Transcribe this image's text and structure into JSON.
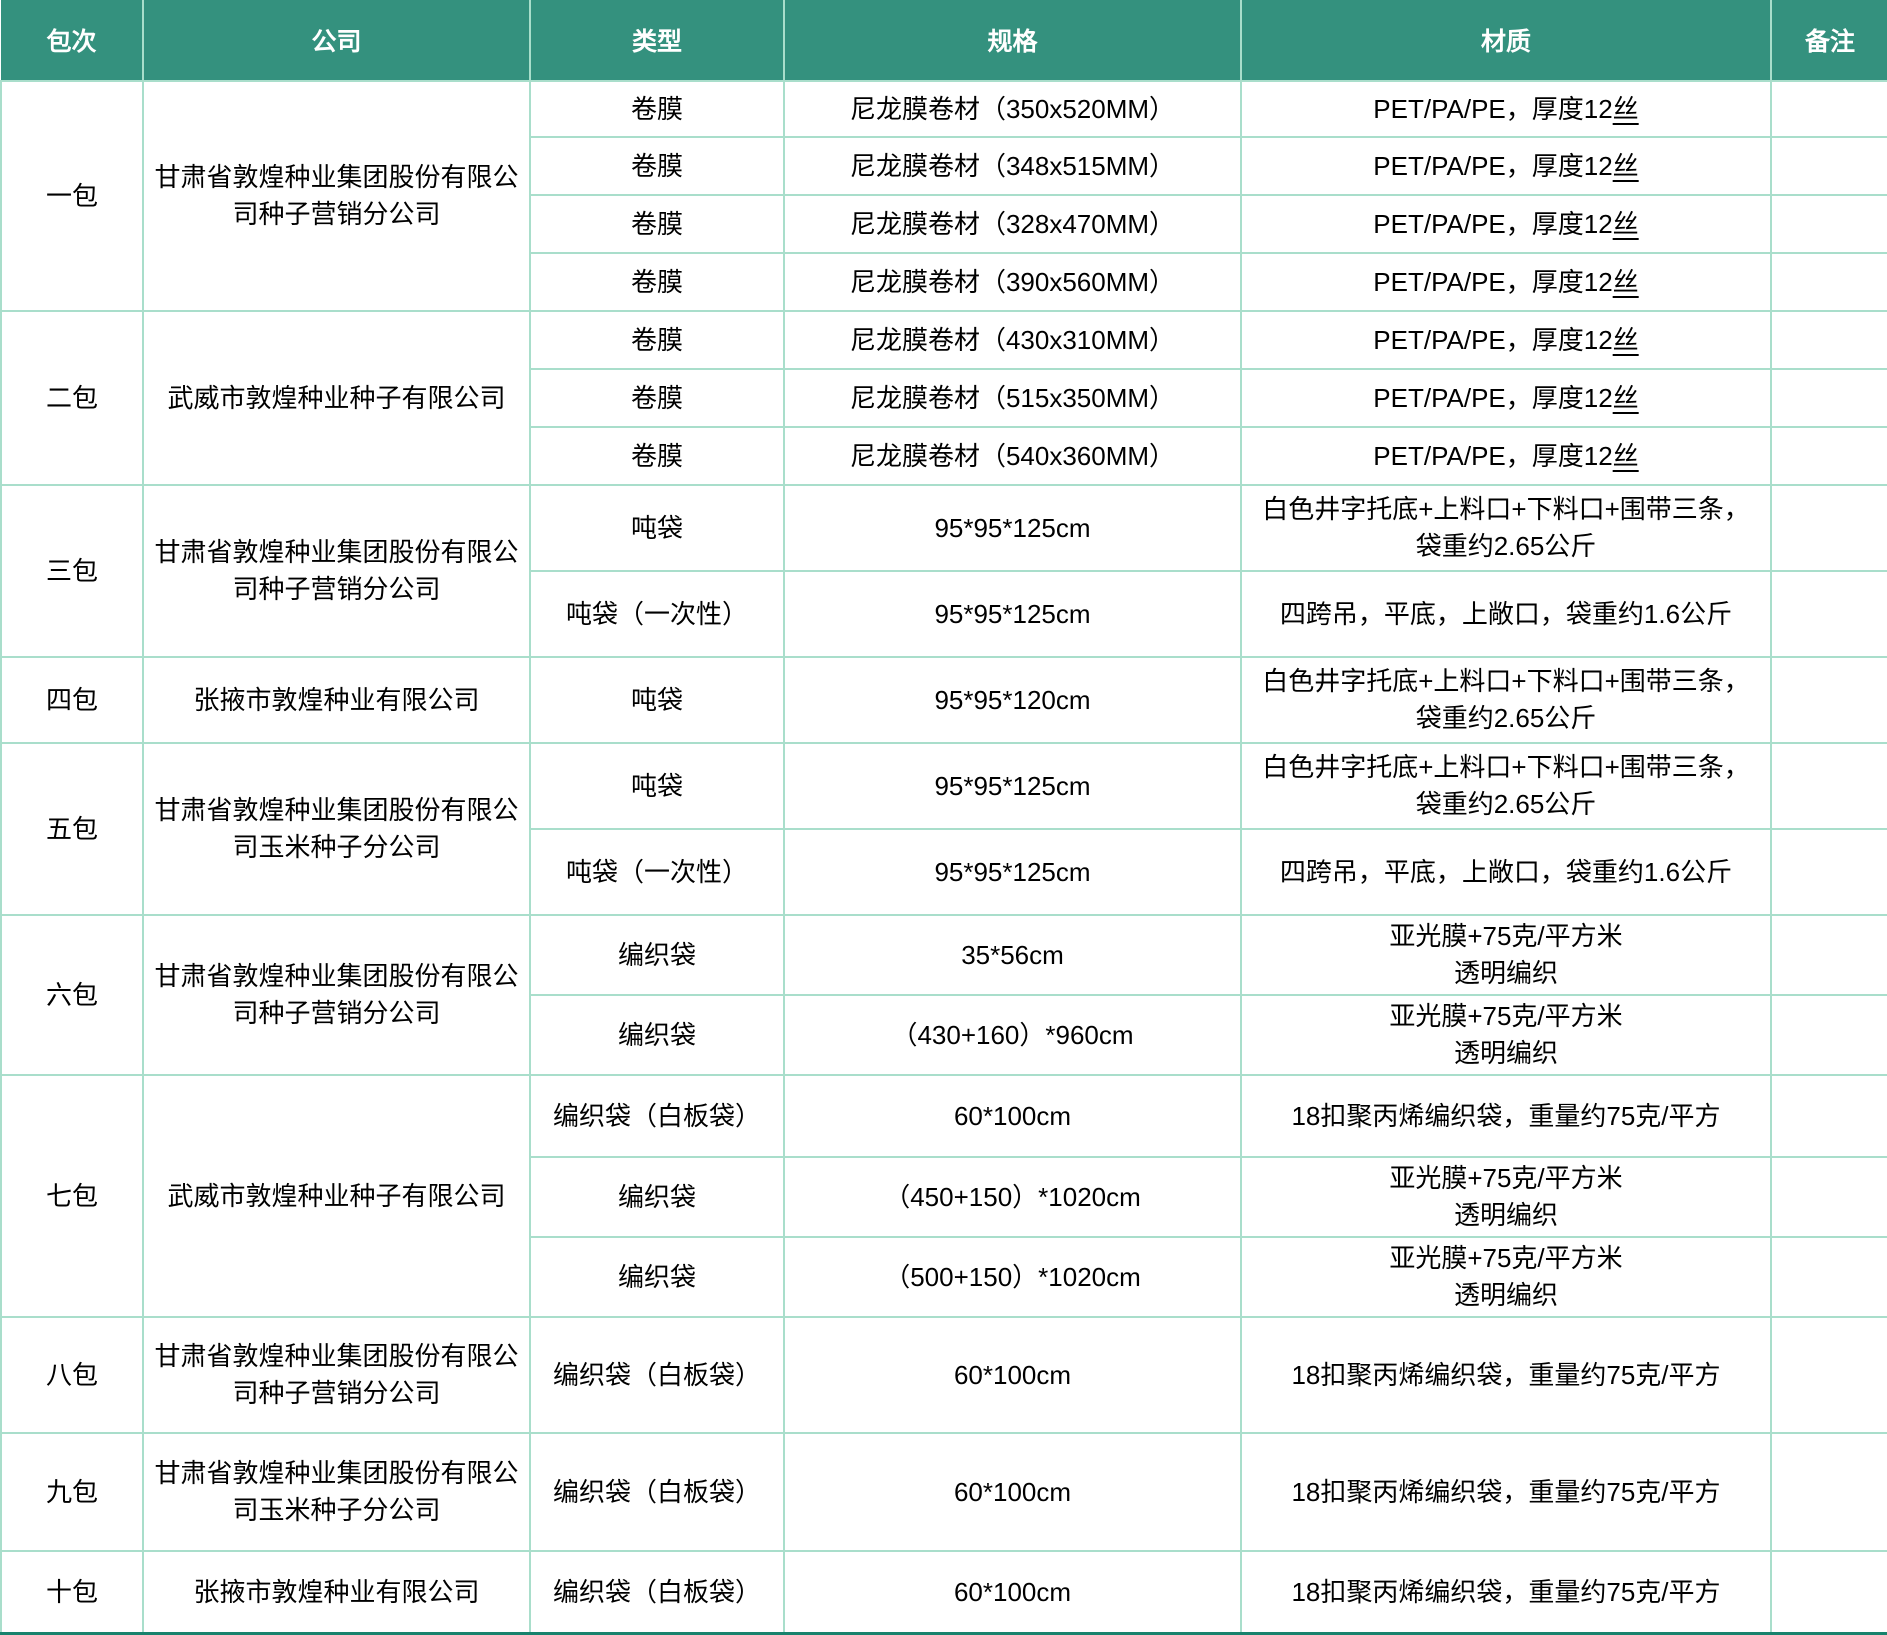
{
  "colors": {
    "header_bg": "#34917E",
    "header_text": "#FFFFFF",
    "grid_line": "#A9DECB",
    "bottom_bar": "#18826D",
    "body_text": "#000000",
    "cell_bg": "#FFFFFF"
  },
  "table": {
    "headers": [
      "包次",
      "公司",
      "类型",
      "规格",
      "材质",
      "备注"
    ],
    "groups": [
      {
        "batch": "一包",
        "company": "甘肃省敦煌种业集团股份有限公司种子营销分公司",
        "rows": [
          {
            "type": "卷膜",
            "spec": "尼龙膜卷材（350x520MM）",
            "material": [
              [
                {
                  "t": "PET/PA/PE，厚度12"
                },
                {
                  "t": "丝",
                  "u": true
                }
              ]
            ],
            "note": ""
          },
          {
            "type": "卷膜",
            "spec": "尼龙膜卷材（348x515MM）",
            "material": [
              [
                {
                  "t": "PET/PA/PE，厚度12"
                },
                {
                  "t": "丝",
                  "u": true
                }
              ]
            ],
            "note": ""
          },
          {
            "type": "卷膜",
            "spec": "尼龙膜卷材（328x470MM）",
            "material": [
              [
                {
                  "t": "PET/PA/PE，厚度12"
                },
                {
                  "t": "丝",
                  "u": true
                }
              ]
            ],
            "note": ""
          },
          {
            "type": "卷膜",
            "spec": "尼龙膜卷材（390x560MM）",
            "material": [
              [
                {
                  "t": "PET/PA/PE，厚度12"
                },
                {
                  "t": "丝",
                  "u": true
                }
              ]
            ],
            "note": ""
          }
        ]
      },
      {
        "batch": "二包",
        "company": "武威市敦煌种业种子有限公司",
        "rows": [
          {
            "type": "卷膜",
            "spec": "尼龙膜卷材（430x310MM）",
            "material": [
              [
                {
                  "t": "PET/PA/PE，厚度12"
                },
                {
                  "t": "丝",
                  "u": true
                }
              ]
            ],
            "note": ""
          },
          {
            "type": "卷膜",
            "spec": "尼龙膜卷材（515x350MM）",
            "material": [
              [
                {
                  "t": "PET/PA/PE，厚度12"
                },
                {
                  "t": "丝",
                  "u": true
                }
              ]
            ],
            "note": ""
          },
          {
            "type": "卷膜",
            "spec": "尼龙膜卷材（540x360MM）",
            "material": [
              [
                {
                  "t": "PET/PA/PE，厚度12"
                },
                {
                  "t": "丝",
                  "u": true
                }
              ]
            ],
            "note": ""
          }
        ]
      },
      {
        "batch": "三包",
        "company": "甘肃省敦煌种业集团股份有限公司种子营销分公司",
        "rows": [
          {
            "type": "吨袋",
            "spec": "95*95*125cm",
            "material": [
              [
                {
                  "t": "白色井字托底+上料口+下料口+围带三条，"
                }
              ],
              [
                {
                  "t": "袋重约2.65公斤"
                }
              ]
            ],
            "note": ""
          },
          {
            "type": "吨袋（一次性）",
            "spec": "95*95*125cm",
            "material": [
              [
                {
                  "t": "四跨吊，平底，上敞口，袋重约1.6公斤"
                }
              ]
            ],
            "note": ""
          }
        ]
      },
      {
        "batch": "四包",
        "company": "张掖市敦煌种业有限公司",
        "rows": [
          {
            "type": "吨袋",
            "spec": "95*95*120cm",
            "material": [
              [
                {
                  "t": "白色井字托底+上料口+下料口+围带三条，"
                }
              ],
              [
                {
                  "t": "袋重约2.65公斤"
                }
              ]
            ],
            "note": ""
          }
        ]
      },
      {
        "batch": "五包",
        "company": "甘肃省敦煌种业集团股份有限公司玉米种子分公司",
        "rows": [
          {
            "type": "吨袋",
            "spec": "95*95*125cm",
            "material": [
              [
                {
                  "t": "白色井字托底+上料口+下料口+围带三条，"
                }
              ],
              [
                {
                  "t": "袋重约2.65公斤"
                }
              ]
            ],
            "note": ""
          },
          {
            "type": "吨袋（一次性）",
            "spec": "95*95*125cm",
            "material": [
              [
                {
                  "t": "四跨吊，平底，上敞口，袋重约1.6公斤"
                }
              ]
            ],
            "note": ""
          }
        ]
      },
      {
        "batch": "六包",
        "company": "甘肃省敦煌种业集团股份有限公司种子营销分公司",
        "rows": [
          {
            "type": "编织袋",
            "spec": "35*56cm",
            "material": [
              [
                {
                  "t": "亚光膜+75克/平方米"
                }
              ],
              [
                {
                  "t": "透明编织"
                }
              ]
            ],
            "note": ""
          },
          {
            "type": "编织袋",
            "spec": "（430+160）*960cm",
            "material": [
              [
                {
                  "t": "亚光膜+75克/平方米"
                }
              ],
              [
                {
                  "t": "透明编织"
                }
              ]
            ],
            "note": ""
          }
        ]
      },
      {
        "batch": "七包",
        "company": "武威市敦煌种业种子有限公司",
        "rows": [
          {
            "type": "编织袋（白板袋）",
            "spec": "60*100cm",
            "material": [
              [
                {
                  "t": "18扣聚丙烯编织袋，重量约75克/平方"
                }
              ]
            ],
            "note": ""
          },
          {
            "type": "编织袋",
            "spec": "（450+150）*1020cm",
            "material": [
              [
                {
                  "t": "亚光膜+75克/平方米"
                }
              ],
              [
                {
                  "t": "透明编织"
                }
              ]
            ],
            "note": ""
          },
          {
            "type": "编织袋",
            "spec": "（500+150）*1020cm",
            "material": [
              [
                {
                  "t": "亚光膜+75克/平方米"
                }
              ],
              [
                {
                  "t": "透明编织"
                }
              ]
            ],
            "note": ""
          }
        ]
      },
      {
        "batch": "八包",
        "company": "甘肃省敦煌种业集团股份有限公司种子营销分公司",
        "rows": [
          {
            "type": "编织袋（白板袋）",
            "spec": "60*100cm",
            "material": [
              [
                {
                  "t": "18扣聚丙烯编织袋，重量约75克/平方"
                }
              ]
            ],
            "note": ""
          }
        ]
      },
      {
        "batch": "九包",
        "company": "甘肃省敦煌种业集团股份有限公司玉米种子分公司",
        "rows": [
          {
            "type": "编织袋（白板袋）",
            "spec": "60*100cm",
            "material": [
              [
                {
                  "t": "18扣聚丙烯编织袋，重量约75克/平方"
                }
              ]
            ],
            "note": ""
          }
        ]
      },
      {
        "batch": "十包",
        "company": "张掖市敦煌种业有限公司",
        "rows": [
          {
            "type": "编织袋（白板袋）",
            "spec": "60*100cm",
            "material": [
              [
                {
                  "t": "18扣聚丙烯编织袋，重量约75克/平方"
                }
              ]
            ],
            "note": ""
          }
        ]
      }
    ]
  }
}
